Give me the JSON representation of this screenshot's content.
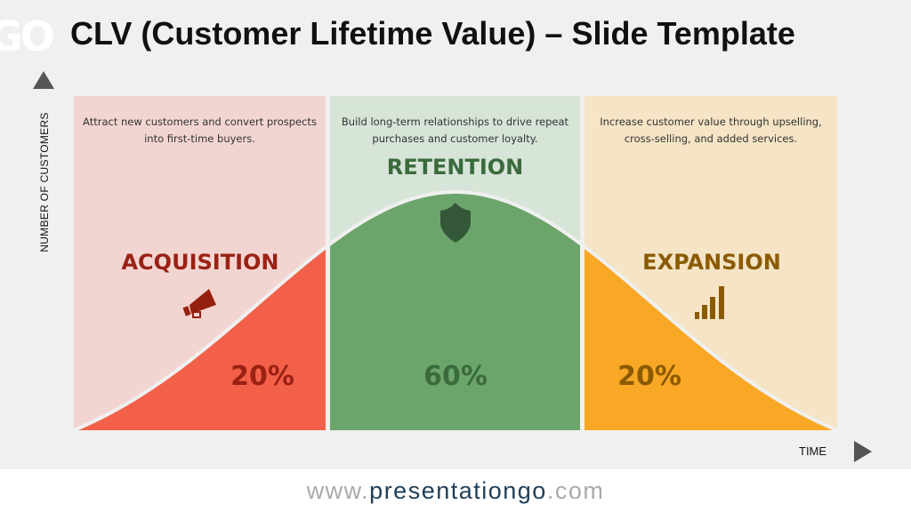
{
  "logo": "GO",
  "title": "CLV (Customer Lifetime Value) – Slide Template",
  "y_axis_label": "NUMBER OF CUSTOMERS",
  "x_axis_label": "TIME",
  "colors": {
    "acquisition_bg": "#f2d5d1",
    "acquisition_fill": "#f26049",
    "acquisition_text": "#9b2115",
    "retention_bg": "#d7e4d8",
    "retention_fill": "#6ca56b",
    "retention_text": "#3a6b3c",
    "expansion_bg": "#f5e4c5",
    "expansion_fill": "#f9a825",
    "expansion_text": "#8b5a00"
  },
  "stages": [
    {
      "name": "ACQUISITION",
      "description": "Attract new customers and convert prospects into first-time buyers.",
      "percent": "20%",
      "icon": "megaphone-icon"
    },
    {
      "name": "RETENTION",
      "description": "Build long-term relationships to drive repeat purchases and customer loyalty.",
      "percent": "60%",
      "icon": "shield-icon"
    },
    {
      "name": "EXPANSION",
      "description": "Increase customer value through upselling, cross-selling, and added services.",
      "percent": "20%",
      "icon": "bar-chart-icon"
    }
  ],
  "footer": {
    "prefix": "www.",
    "brand": "presentationgo",
    ".suffix": ".com",
    "suffix": ".com"
  }
}
